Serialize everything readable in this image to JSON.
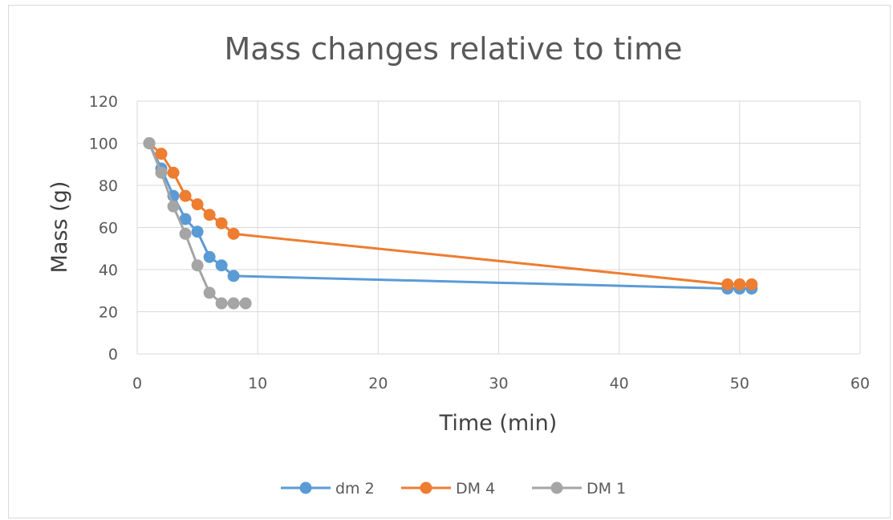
{
  "chart_data": {
    "type": "line",
    "title": "Mass changes relative to time",
    "xlabel": "Time (min)",
    "ylabel": "Mass (g)",
    "xlim": [
      0,
      60
    ],
    "ylim": [
      0,
      120
    ],
    "xticks": [
      0,
      10,
      20,
      30,
      40,
      50,
      60
    ],
    "yticks": [
      0,
      20,
      40,
      60,
      80,
      100,
      120
    ],
    "grid": true,
    "legend_position": "bottom",
    "series": [
      {
        "name": "dm 2",
        "color": "#5b9bd5",
        "x": [
          1,
          2,
          3,
          4,
          5,
          6,
          7,
          8,
          49,
          50,
          51
        ],
        "y": [
          100,
          88,
          75,
          64,
          58,
          46,
          42,
          37,
          31,
          31,
          31
        ]
      },
      {
        "name": "DM 4",
        "color": "#ed7d31",
        "x": [
          1,
          2,
          3,
          4,
          5,
          6,
          7,
          8,
          49,
          50,
          51
        ],
        "y": [
          100,
          95,
          86,
          75,
          71,
          66,
          62,
          57,
          33,
          33,
          33
        ]
      },
      {
        "name": "DM 1",
        "color": "#a5a5a5",
        "x": [
          1,
          2,
          3,
          4,
          5,
          6,
          7,
          8,
          9
        ],
        "y": [
          100,
          86,
          70,
          57,
          42,
          29,
          24,
          24,
          24
        ]
      }
    ]
  }
}
